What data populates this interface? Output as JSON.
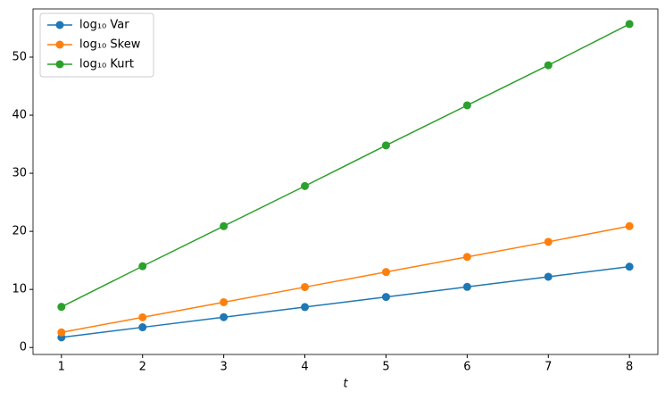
{
  "chart_data": {
    "type": "line",
    "xlabel": "t",
    "x": [
      1,
      2,
      3,
      4,
      5,
      6,
      7,
      8
    ],
    "series": [
      {
        "name": "log₁₀ Var",
        "color": "#1f77b4",
        "values": [
          1.74,
          3.48,
          5.22,
          6.96,
          8.7,
          10.44,
          12.18,
          13.92
        ]
      },
      {
        "name": "log₁₀ Skew",
        "color": "#ff7f0e",
        "values": [
          2.6,
          5.2,
          7.8,
          10.4,
          13.0,
          15.6,
          18.2,
          20.9
        ]
      },
      {
        "name": "log₁₀ Kurt",
        "color": "#2ca02c",
        "values": [
          7.0,
          14.0,
          20.9,
          27.8,
          34.8,
          41.7,
          48.6,
          55.7
        ]
      }
    ],
    "xlim": [
      0.65,
      8.35
    ],
    "ylim": [
      -1.2,
      58.3
    ],
    "xticks": [
      1,
      2,
      3,
      4,
      5,
      6,
      7,
      8
    ],
    "yticks": [
      0,
      10,
      20,
      30,
      40,
      50
    ],
    "legend": "upper left"
  }
}
